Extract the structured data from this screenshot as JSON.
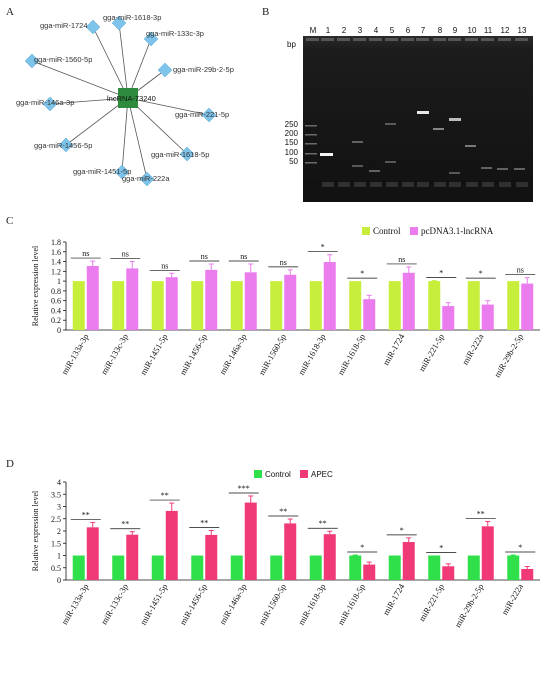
{
  "panels": {
    "a": {
      "letter": "A"
    },
    "b": {
      "letter": "B"
    },
    "c": {
      "letter": "C"
    },
    "d": {
      "letter": "D"
    }
  },
  "network": {
    "hub": "lncRNA-73240",
    "hub_color": "#2e8b3e",
    "node_color": "#7ec3ea",
    "nodes": [
      "gga-miR-1618-3p",
      "gga-miR-133c-3p",
      "gga-miR-29b-2-5p",
      "gga-miR-221-5p",
      "gga-miR-1618-5p",
      "gga-miR-222a",
      "gga-miR-1451-5p",
      "gga-miR-1456-5p",
      "gga-miR-146a-3p",
      "gga-miR-1560-5p",
      "gga-miR-1724"
    ]
  },
  "gel": {
    "lane_labels": [
      "M",
      "1",
      "2",
      "3",
      "4",
      "5",
      "6",
      "7",
      "8",
      "9",
      "10",
      "11",
      "12",
      "13"
    ],
    "unit_label": "bp",
    "marker_sizes": [
      "250",
      "200",
      "150",
      "100",
      "50"
    ]
  },
  "chart_data": [
    {
      "type": "bar",
      "panel": "C",
      "categories": [
        "miR-133a-3p",
        "miR-133c-3p",
        "miR-1451-5p",
        "miR-1456-5p",
        "miR-146a-3p",
        "miR-1560-5p",
        "miR-1618-3p",
        "miR-1618-5p",
        "miR-1724",
        "miR-221-5p",
        "miR-222a",
        "miR-29b-2-5p"
      ],
      "series": [
        {
          "name": "Control",
          "color": "#c8ee3c",
          "values": [
            1,
            1,
            1,
            1,
            1,
            1,
            1,
            1,
            1,
            1,
            1,
            1
          ],
          "errors": [
            0,
            0,
            0,
            0,
            0,
            0,
            0,
            0,
            0,
            0.01,
            0,
            0
          ]
        },
        {
          "name": "pcDNA3.1-lncRNA",
          "color": "#ea7cee",
          "values": [
            1.31,
            1.26,
            1.08,
            1.23,
            1.18,
            1.13,
            1.39,
            0.63,
            1.17,
            0.49,
            0.52,
            0.95
          ],
          "errors": [
            0.1,
            0.14,
            0.08,
            0.12,
            0.17,
            0.1,
            0.15,
            0.08,
            0.12,
            0.07,
            0.08,
            0.12
          ]
        }
      ],
      "significance": [
        "ns",
        "ns",
        "ns",
        "ns",
        "ns",
        "ns",
        "*",
        "*",
        "ns",
        "*",
        "*",
        "ns"
      ],
      "ylabel": "Relative expression level",
      "ylim": [
        0,
        1.8
      ],
      "yticks": [
        "0",
        "0.2",
        "0.4",
        "0.6",
        "0.8",
        "1",
        "1.2",
        "1.4",
        "1.6",
        "1.8"
      ],
      "legend": "top-right"
    },
    {
      "type": "bar",
      "panel": "D",
      "categories": [
        "miR-133a-3p",
        "miR-133c-3p",
        "miR-1451-5p",
        "miR-1456-5p",
        "miR-146a-3p",
        "miR-1560-5p",
        "miR-1618-3p",
        "miR-1618-5p",
        "miR-1724",
        "miR-221-5p",
        "miR-29b-2-5p",
        "miR-222a"
      ],
      "series": [
        {
          "name": "Control",
          "color": "#2fe04a",
          "values": [
            1,
            1,
            1,
            1,
            1,
            1,
            1,
            1,
            1,
            1,
            1,
            1
          ],
          "errors": [
            0,
            0,
            0,
            0,
            0,
            0,
            0,
            0.02,
            0,
            0,
            0,
            0.02
          ]
        },
        {
          "name": "APEC",
          "color": "#f03a78",
          "values": [
            2.15,
            1.85,
            2.82,
            1.84,
            3.16,
            2.31,
            1.87,
            0.63,
            1.55,
            0.56,
            2.19,
            0.45
          ],
          "errors": [
            0.2,
            0.12,
            0.32,
            0.18,
            0.27,
            0.18,
            0.12,
            0.1,
            0.17,
            0.1,
            0.2,
            0.1
          ]
        }
      ],
      "significance": [
        "**",
        "**",
        "**",
        "**",
        "***",
        "**",
        "**",
        "*",
        "*",
        "*",
        "**",
        "*"
      ],
      "ylabel": "Relative expression level",
      "ylim": [
        0,
        4
      ],
      "yticks": [
        "0",
        "0.5",
        "1",
        "1.5",
        "2",
        "2.5",
        "3",
        "3.5",
        "4"
      ],
      "legend": "top-center"
    }
  ]
}
